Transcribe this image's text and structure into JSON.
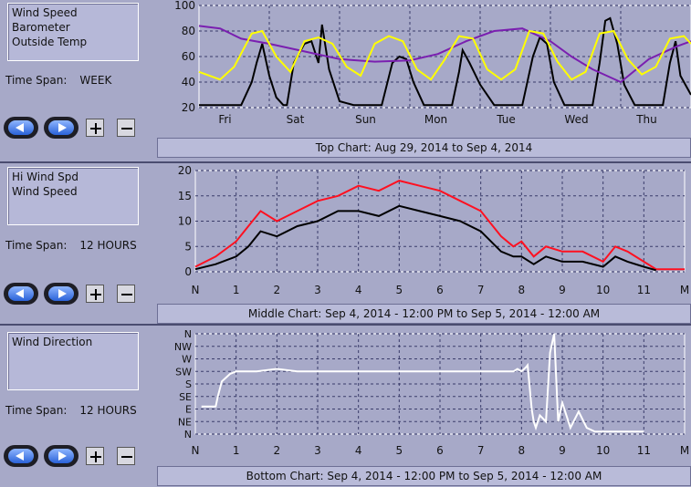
{
  "panels": [
    {
      "legend": [
        "Wind Speed",
        "Barometer",
        "Outside Temp"
      ],
      "timespan_label": "Time Span:",
      "timespan_value": "WEEK",
      "caption": "Top Chart:  Aug 29, 2014  to  Sep 4, 2014"
    },
    {
      "legend": [
        "Hi Wind Spd",
        "Wind Speed"
      ],
      "timespan_label": "Time Span:",
      "timespan_value": "12 HOURS",
      "caption": "Middle Chart:  Sep 4, 2014 - 12:00 PM  to  Sep 5, 2014 - 12:00 AM"
    },
    {
      "legend": [
        "Wind Direction"
      ],
      "timespan_label": "Time Span:",
      "timespan_value": "12 HOURS",
      "caption": "Bottom Chart:  Sep 4, 2014 - 12:00 PM  to  Sep 5, 2014 - 12:00 AM"
    }
  ],
  "colors": {
    "chart_bg": "#a7a9c8",
    "grid": "#3a3c6a",
    "wind_speed_week": "#000000",
    "barometer": "#7a1fb0",
    "outside_temp": "#ffff00",
    "hi_wind": "#ff1020",
    "wind_12h": "#000000",
    "wind_dir": "#ffffff"
  },
  "chart_data": [
    {
      "type": "line",
      "x_ticks": [
        "Fri",
        "Sat",
        "Sun",
        "Mon",
        "Tue",
        "Wed",
        "Thu"
      ],
      "y_ticks": [
        20,
        40,
        60,
        80,
        100
      ],
      "ylim": [
        20,
        100
      ],
      "grid": true,
      "series": [
        {
          "name": "Wind Speed",
          "color": "#000000",
          "x": [
            0,
            0.3,
            0.6,
            0.75,
            0.82,
            0.9,
            1.0,
            1.1,
            1.2,
            1.25,
            1.35,
            1.5,
            1.6,
            1.7,
            1.75,
            1.85,
            2.0,
            2.2,
            2.4,
            2.6,
            2.75,
            2.85,
            2.95,
            3.05,
            3.2,
            3.4,
            3.6,
            3.7,
            3.75,
            3.85,
            4.0,
            4.2,
            4.4,
            4.6,
            4.75,
            4.85,
            4.95,
            5.05,
            5.2,
            5.4,
            5.6,
            5.7,
            5.78,
            5.85,
            5.95,
            6.05,
            6.2,
            6.4,
            6.6,
            6.7,
            6.78,
            6.85,
            7.0
          ],
          "y": [
            22,
            22,
            22,
            40,
            55,
            70,
            45,
            28,
            22,
            22,
            55,
            70,
            72,
            55,
            85,
            50,
            25,
            22,
            22,
            22,
            55,
            60,
            58,
            40,
            22,
            22,
            22,
            48,
            65,
            55,
            38,
            22,
            22,
            22,
            60,
            75,
            70,
            40,
            22,
            22,
            22,
            55,
            88,
            90,
            70,
            38,
            22,
            22,
            22,
            55,
            72,
            45,
            30
          ]
        },
        {
          "name": "Barometer",
          "color": "#7a1fb0",
          "x": [
            0,
            0.3,
            0.6,
            1.0,
            1.5,
            2.0,
            2.5,
            3.0,
            3.4,
            3.8,
            4.2,
            4.6,
            5.0,
            5.3,
            5.6,
            6.0,
            6.4,
            6.8,
            7.0
          ],
          "y": [
            84,
            82,
            74,
            70,
            64,
            58,
            56,
            57,
            62,
            72,
            80,
            82,
            72,
            60,
            50,
            40,
            58,
            68,
            72
          ]
        },
        {
          "name": "Outside Temp",
          "color": "#ffff00",
          "x": [
            0,
            0.3,
            0.5,
            0.75,
            0.9,
            1.1,
            1.3,
            1.5,
            1.7,
            1.9,
            2.1,
            2.3,
            2.5,
            2.7,
            2.9,
            3.1,
            3.3,
            3.5,
            3.7,
            3.9,
            4.1,
            4.3,
            4.5,
            4.7,
            4.9,
            5.1,
            5.3,
            5.5,
            5.7,
            5.9,
            6.1,
            6.3,
            6.5,
            6.7,
            6.9,
            7.0
          ],
          "y": [
            48,
            42,
            52,
            78,
            80,
            60,
            48,
            72,
            75,
            70,
            52,
            45,
            70,
            76,
            72,
            50,
            42,
            58,
            76,
            74,
            50,
            42,
            50,
            80,
            78,
            56,
            42,
            48,
            78,
            80,
            58,
            46,
            52,
            74,
            76,
            70
          ]
        }
      ]
    },
    {
      "type": "line",
      "x_ticks": [
        "N",
        "1",
        "2",
        "3",
        "4",
        "5",
        "6",
        "7",
        "8",
        "9",
        "10",
        "11",
        "M"
      ],
      "y_ticks": [
        0,
        5,
        10,
        15,
        20
      ],
      "ylim": [
        0,
        20
      ],
      "grid": true,
      "series": [
        {
          "name": "Hi Wind Spd",
          "color": "#ff1020",
          "x": [
            0,
            0.5,
            1.0,
            1.3,
            1.6,
            2.0,
            2.5,
            3.0,
            3.5,
            4.0,
            4.5,
            5.0,
            5.5,
            6.0,
            6.5,
            7.0,
            7.5,
            7.8,
            8.0,
            8.3,
            8.6,
            9.0,
            9.5,
            10.0,
            10.3,
            10.6,
            11.0,
            11.3,
            11.8,
            12.0
          ],
          "y": [
            1,
            3,
            6,
            9,
            12,
            10,
            12,
            14,
            15,
            17,
            16,
            18,
            17,
            16,
            14,
            12,
            7,
            5,
            6,
            3,
            5,
            4,
            4,
            2,
            5,
            4,
            2,
            0.5,
            0.5,
            0.5
          ]
        },
        {
          "name": "Wind Speed",
          "color": "#000000",
          "x": [
            0,
            0.5,
            1.0,
            1.3,
            1.6,
            2.0,
            2.5,
            3.0,
            3.5,
            4.0,
            4.5,
            5.0,
            5.5,
            6.0,
            6.5,
            7.0,
            7.5,
            7.8,
            8.0,
            8.3,
            8.6,
            9.0,
            9.5,
            10.0,
            10.3,
            10.6,
            11.0,
            11.3
          ],
          "y": [
            0.5,
            1.5,
            3,
            5,
            8,
            7,
            9,
            10,
            12,
            12,
            11,
            13,
            12,
            11,
            10,
            8,
            4,
            3,
            3,
            1.5,
            3,
            2,
            2,
            1,
            3,
            2,
            1,
            0.3
          ]
        }
      ]
    },
    {
      "type": "line",
      "x_ticks": [
        "N",
        "1",
        "2",
        "3",
        "4",
        "5",
        "6",
        "7",
        "8",
        "9",
        "10",
        "11",
        "M"
      ],
      "y_ticks": [
        "N",
        "NE",
        "E",
        "SE",
        "S",
        "SW",
        "W",
        "NW",
        "N"
      ],
      "ylim": [
        0,
        8
      ],
      "grid": true,
      "series": [
        {
          "name": "Wind Direction",
          "color": "#ffffff",
          "x": [
            0.15,
            0.5,
            0.55,
            0.65,
            0.75,
            0.85,
            1.0,
            1.5,
            2.0,
            2.5,
            3.0,
            4.0,
            5.0,
            6.0,
            7.0,
            7.5,
            7.8,
            7.9,
            8.0,
            8.1,
            8.15,
            8.25,
            8.3,
            8.35,
            8.45,
            8.6,
            8.7,
            8.8,
            8.9,
            9.0,
            9.2,
            9.4,
            9.6,
            9.8,
            10.0,
            10.4,
            11.0
          ],
          "y": [
            2.2,
            2.2,
            3,
            4.2,
            4.5,
            4.8,
            5.0,
            5.0,
            5.2,
            5.0,
            5.0,
            5.0,
            5.0,
            5.0,
            5.0,
            5.0,
            5.0,
            5.2,
            5.0,
            5.3,
            5.5,
            2.0,
            1.0,
            0.5,
            1.5,
            1.0,
            6.5,
            8.0,
            1.0,
            2.5,
            0.5,
            1.8,
            0.5,
            0.2,
            0.2,
            0.2,
            0.2
          ]
        }
      ]
    }
  ]
}
